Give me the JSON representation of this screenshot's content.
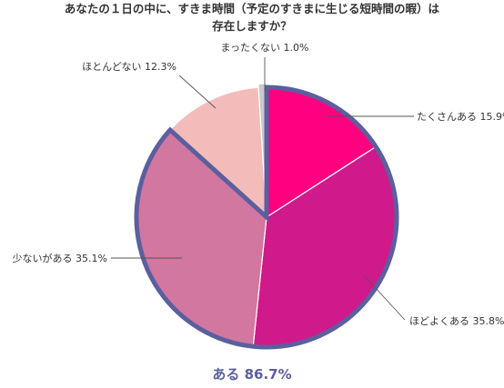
{
  "chart_data": {
    "type": "pie",
    "title_lines": [
      "あなたの１日の中に、すきま時間（予定のすきまに生じる短時間の暇）は",
      "存在しますか？"
    ],
    "slices": [
      {
        "label": "たくさんある",
        "value": 15.9,
        "value_text": "15.9%",
        "color": "#ff0080"
      },
      {
        "label": "ほどよくある",
        "value": 35.8,
        "value_text": "35.8%",
        "color": "#d0198a"
      },
      {
        "label": "少ないがある",
        "value": 35.1,
        "value_text": "35.1%",
        "color": "#d277a0"
      },
      {
        "label": "ほとんどない",
        "value": 12.3,
        "value_text": "12.3%",
        "color": "#f4bbbb"
      },
      {
        "label": "まったくない",
        "value": 1.0,
        "value_text": "1.0%",
        "color": "#c9c9c9"
      }
    ],
    "highlight_group": {
      "label": "ある",
      "value_text": "86.7%",
      "outline_color": "#5b5f9e"
    },
    "start_angle_deg": 0,
    "direction": "clockwise"
  }
}
